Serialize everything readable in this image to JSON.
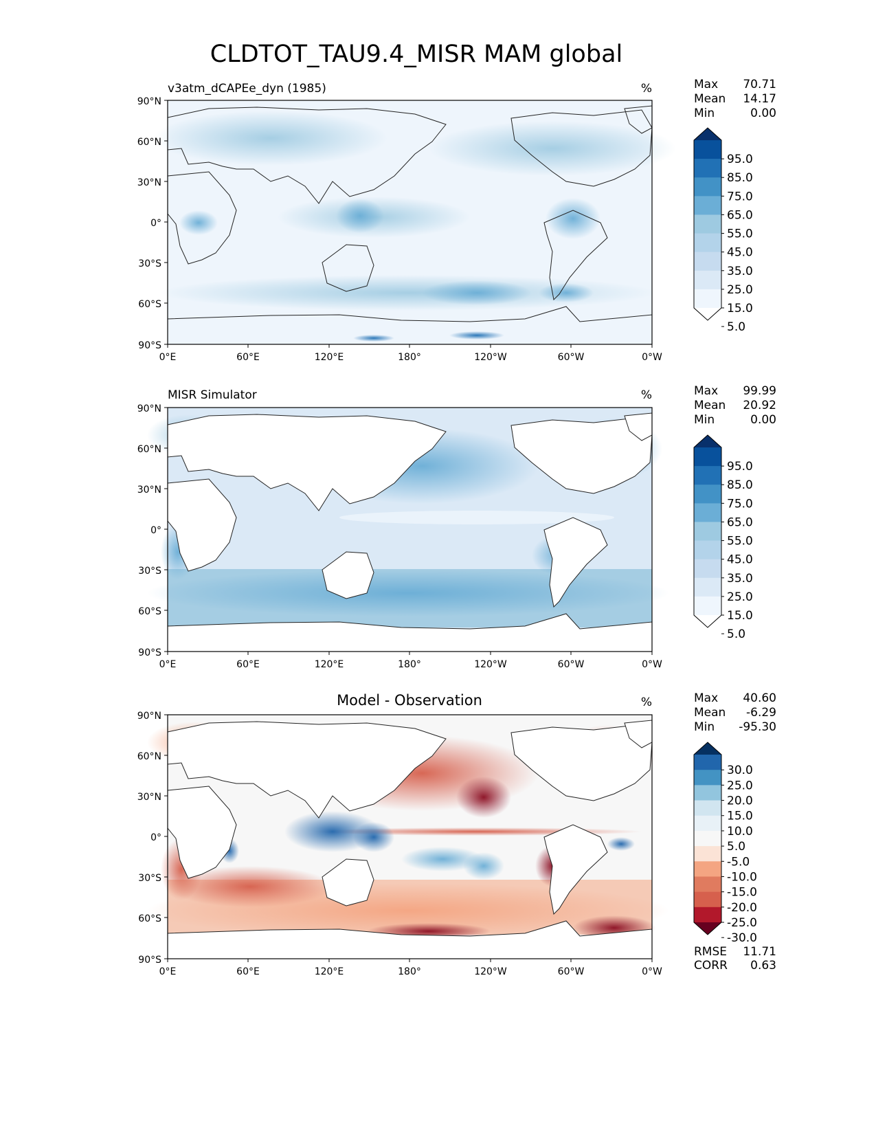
{
  "figure": {
    "title": "CLDTOT_TAU9.4_MISR MAM global"
  },
  "axes": {
    "lat_ticks": [
      "90°N",
      "60°N",
      "30°N",
      "0°",
      "30°S",
      "60°S",
      "90°S"
    ],
    "lon_ticks": [
      "0°E",
      "60°E",
      "120°E",
      "180°",
      "120°W",
      "60°W",
      "0°W"
    ]
  },
  "panels": [
    {
      "id": "test",
      "title_left": "v3atm_dCAPEe_dyn (1985)",
      "title_center": "",
      "units": "%",
      "stats": [
        {
          "label": "Max",
          "value": "70.71"
        },
        {
          "label": "Mean",
          "value": "14.17"
        },
        {
          "label": "Min",
          "value": "0.00"
        }
      ],
      "colorbar": {
        "labels": [
          "95.0",
          "85.0",
          "75.0",
          "65.0",
          "55.0",
          "45.0",
          "35.0",
          "25.0",
          "15.0",
          "5.0"
        ],
        "colors": [
          "#08306b",
          "#08519c",
          "#2171b5",
          "#4292c6",
          "#6baed6",
          "#9ecae1",
          "#b3d3ea",
          "#c6dbef",
          "#dbe9f6",
          "#eff6fd",
          "#ffffff"
        ]
      },
      "footer": []
    },
    {
      "id": "ref",
      "title_left": "MISR Simulator",
      "title_center": "",
      "units": "%",
      "stats": [
        {
          "label": "Max",
          "value": "99.99"
        },
        {
          "label": "Mean",
          "value": "20.92"
        },
        {
          "label": "Min",
          "value": "0.00"
        }
      ],
      "colorbar": {
        "labels": [
          "95.0",
          "85.0",
          "75.0",
          "65.0",
          "55.0",
          "45.0",
          "35.0",
          "25.0",
          "15.0",
          "5.0"
        ],
        "colors": [
          "#08306b",
          "#08519c",
          "#2171b5",
          "#4292c6",
          "#6baed6",
          "#9ecae1",
          "#b3d3ea",
          "#c6dbef",
          "#dbe9f6",
          "#eff6fd",
          "#ffffff"
        ]
      },
      "footer": []
    },
    {
      "id": "diff",
      "title_left": "",
      "title_center": "Model - Observation",
      "units": "%",
      "stats": [
        {
          "label": "Max",
          "value": "40.60"
        },
        {
          "label": "Mean",
          "value": "-6.29"
        },
        {
          "label": "Min",
          "value": "-95.30"
        }
      ],
      "colorbar": {
        "labels": [
          "30.0",
          "25.0",
          "20.0",
          "15.0",
          "10.0",
          "5.0",
          "-5.0",
          "-10.0",
          "-15.0",
          "-20.0",
          "-25.0",
          "-30.0"
        ],
        "colors": [
          "#053061",
          "#2166ac",
          "#4393c3",
          "#92c5de",
          "#d1e5f0",
          "#e8f1f7",
          "#f7f7f7",
          "#fbe3d6",
          "#f4a582",
          "#e07b5f",
          "#d6604d",
          "#b2182b",
          "#67001f"
        ]
      },
      "footer": [
        {
          "label": "RMSE",
          "value": "11.71"
        },
        {
          "label": "CORR",
          "value": "0.63"
        }
      ]
    }
  ]
}
